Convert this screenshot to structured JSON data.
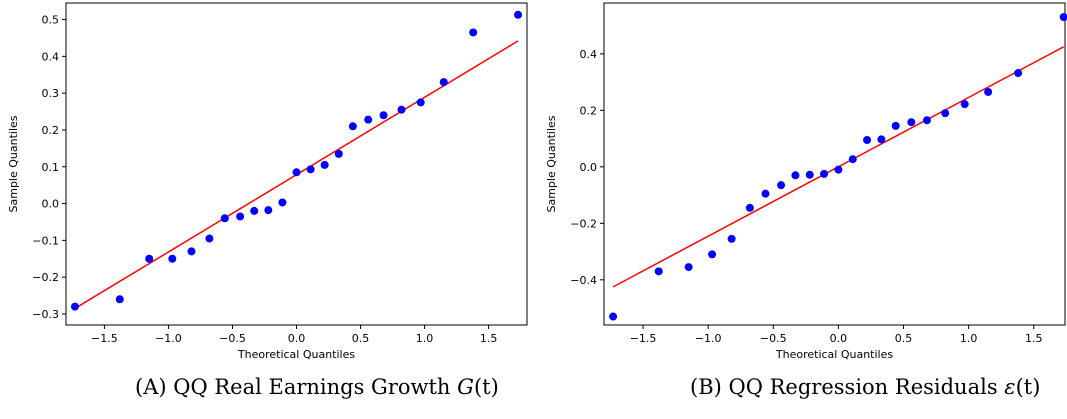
{
  "charts": [
    {
      "caption": {
        "tag": "(A)",
        "text": "QQ Real Earnings Growth",
        "symbol": "G",
        "arg": "(t)"
      },
      "chart_data": {
        "type": "scatter",
        "xlabel": "Theoretical Quantiles",
        "ylabel": "Sample Quantiles",
        "xlim": [
          -1.8,
          1.8
        ],
        "ylim": [
          -0.33,
          0.545
        ],
        "xticks": [
          -1.5,
          -1.0,
          -0.5,
          0.0,
          0.5,
          1.0,
          1.5
        ],
        "xtick_labels": [
          "−1.5",
          "−1.0",
          "−0.5",
          "0.0",
          "0.5",
          "1.0",
          "1.5"
        ],
        "yticks": [
          -0.3,
          -0.2,
          -0.1,
          0.0,
          0.1,
          0.2,
          0.3,
          0.4,
          0.5
        ],
        "ytick_labels": [
          "−0.3",
          "−0.2",
          "−0.1",
          "0.0",
          "0.1",
          "0.2",
          "0.3",
          "0.4",
          "0.5"
        ],
        "points": {
          "x": [
            -1.73,
            -1.38,
            -1.15,
            -0.97,
            -0.82,
            -0.68,
            -0.56,
            -0.44,
            -0.33,
            -0.22,
            -0.11,
            0.0,
            0.11,
            0.22,
            0.33,
            0.44,
            0.56,
            0.68,
            0.82,
            0.97,
            1.15,
            1.38,
            1.73
          ],
          "y": [
            -0.28,
            -0.26,
            -0.15,
            -0.15,
            -0.13,
            -0.095,
            -0.04,
            -0.035,
            -0.02,
            -0.018,
            0.003,
            0.085,
            0.093,
            0.105,
            0.135,
            0.21,
            0.228,
            0.24,
            0.255,
            0.275,
            0.33,
            0.465,
            0.513
          ],
          "color": "#0000ff"
        },
        "line": {
          "x": [
            -1.73,
            1.73
          ],
          "y": [
            -0.285,
            0.442
          ],
          "color": "#ff0000"
        },
        "grid": false
      }
    },
    {
      "caption": {
        "tag": "(B)",
        "text": "QQ Regression Residuals",
        "symbol": "ε",
        "arg": "(t)"
      },
      "chart_data": {
        "type": "scatter",
        "xlabel": "Theoretical Quantiles",
        "ylabel": "Sample Quantiles",
        "xlim": [
          -1.8,
          1.74
        ],
        "ylim": [
          -0.56,
          0.58
        ],
        "xticks": [
          -1.5,
          -1.0,
          -0.5,
          0.0,
          0.5,
          1.0,
          1.5
        ],
        "xtick_labels": [
          "−1.5",
          "−1.0",
          "−0.5",
          "0.0",
          "0.5",
          "1.0",
          "1.5"
        ],
        "yticks": [
          -0.4,
          -0.2,
          0.0,
          0.2,
          0.4
        ],
        "ytick_labels": [
          "−0.4",
          "−0.2",
          "0.0",
          "0.2",
          "0.4"
        ],
        "points": {
          "x": [
            -1.73,
            -1.38,
            -1.15,
            -0.97,
            -0.82,
            -0.68,
            -0.56,
            -0.44,
            -0.33,
            -0.22,
            -0.11,
            0.0,
            0.11,
            0.22,
            0.33,
            0.44,
            0.56,
            0.68,
            0.82,
            0.97,
            1.15,
            1.38,
            1.73
          ],
          "y": [
            -0.53,
            -0.37,
            -0.355,
            -0.31,
            -0.255,
            -0.145,
            -0.095,
            -0.065,
            -0.03,
            -0.028,
            -0.025,
            -0.01,
            0.027,
            0.095,
            0.097,
            0.145,
            0.158,
            0.165,
            0.19,
            0.222,
            0.265,
            0.332,
            0.53
          ],
          "color": "#0000ff"
        },
        "line": {
          "x": [
            -1.73,
            1.73
          ],
          "y": [
            -0.425,
            0.425
          ],
          "color": "#ff0000"
        },
        "grid": false
      }
    }
  ]
}
